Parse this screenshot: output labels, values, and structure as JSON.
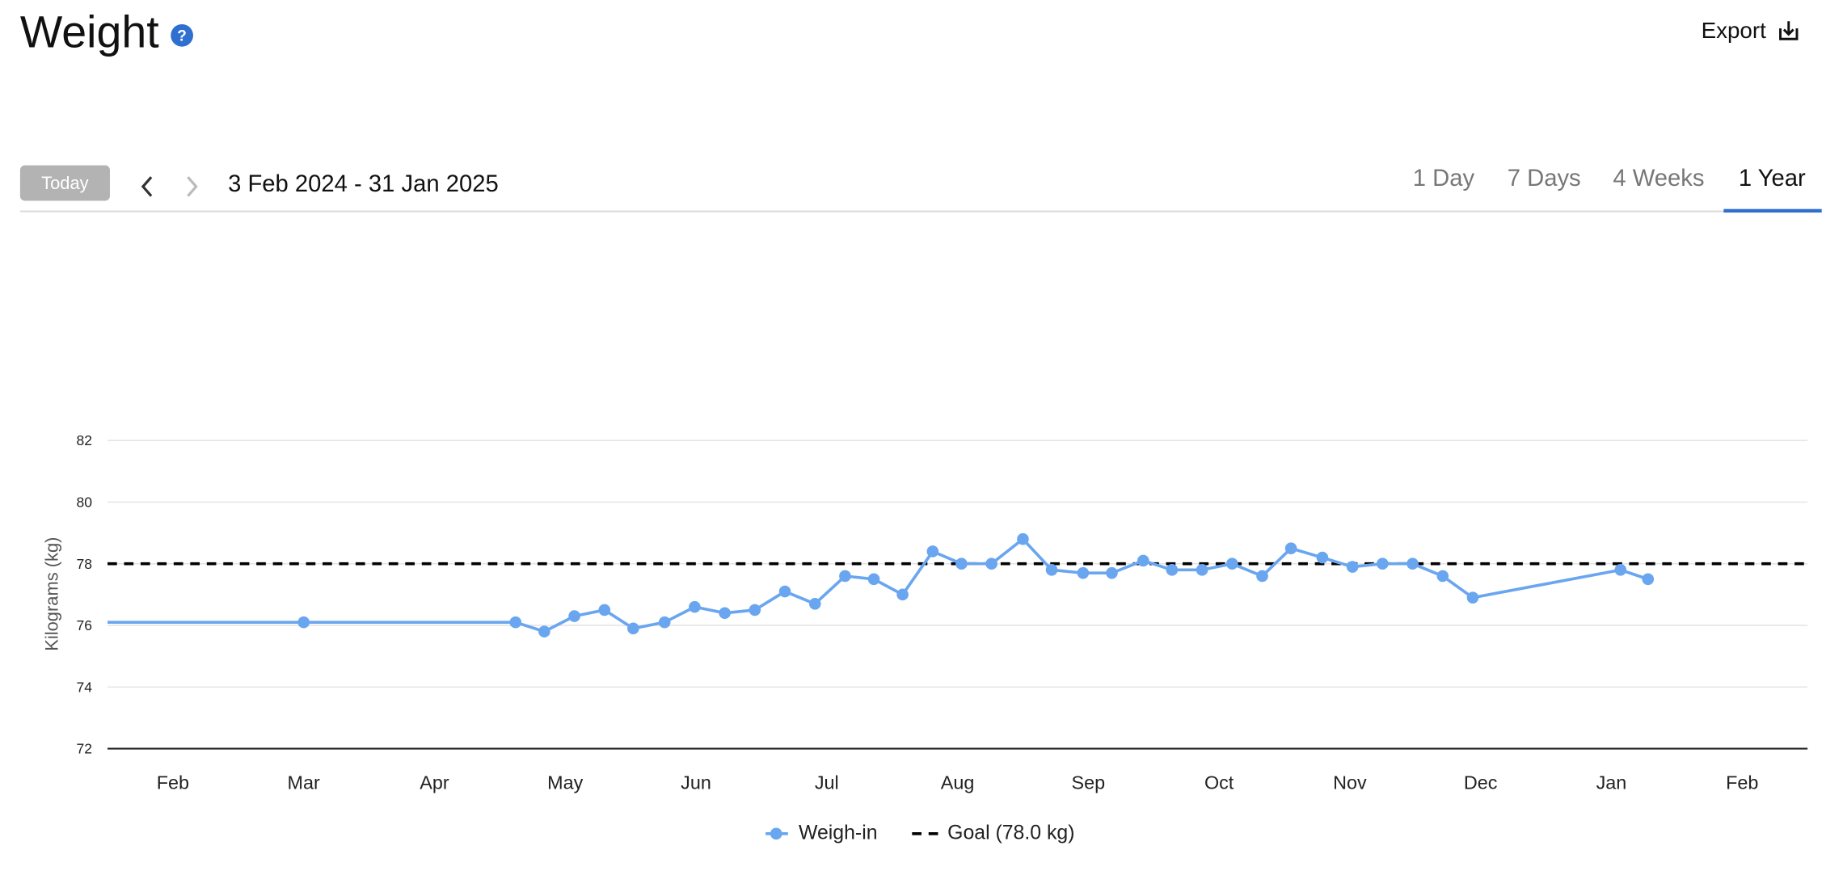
{
  "header": {
    "title": "Weight",
    "help_icon": "?",
    "export_label": "Export"
  },
  "controls": {
    "today": "Today",
    "date_range": "3 Feb 2024 - 31 Jan 2025",
    "tabs": [
      "1 Day",
      "7 Days",
      "4 Weeks",
      "1 Year"
    ],
    "selected_tab": 3
  },
  "chart_data": {
    "type": "line",
    "y_label": "Kilograms (kg)",
    "xlim": [
      -0.5,
      12.5
    ],
    "xticks": [
      {
        "value": 0,
        "label": "Feb"
      },
      {
        "value": 1,
        "label": "Mar"
      },
      {
        "value": 2,
        "label": "Apr"
      },
      {
        "value": 3,
        "label": "May"
      },
      {
        "value": 4,
        "label": "Jun"
      },
      {
        "value": 5,
        "label": "Jul"
      },
      {
        "value": 6,
        "label": "Aug"
      },
      {
        "value": 7,
        "label": "Sep"
      },
      {
        "value": 8,
        "label": "Oct"
      },
      {
        "value": 9,
        "label": "Nov"
      },
      {
        "value": 10,
        "label": "Dec"
      },
      {
        "value": 11,
        "label": "Jan"
      },
      {
        "value": 12,
        "label": "Feb"
      }
    ],
    "ylim": [
      72,
      82
    ],
    "yticks": [
      72,
      74,
      76,
      78,
      80,
      82
    ],
    "grid": true,
    "series": [
      {
        "name": "Weigh-in",
        "color": "#6aa6f0",
        "x": [
          -0.5,
          1.0,
          2.62,
          2.84,
          3.07,
          3.3,
          3.52,
          3.76,
          3.99,
          4.22,
          4.45,
          4.68,
          4.91,
          5.14,
          5.36,
          5.58,
          5.81,
          6.03,
          6.26,
          6.5,
          6.72,
          6.96,
          7.18,
          7.42,
          7.64,
          7.87,
          8.1,
          8.33,
          8.55,
          8.79,
          9.02,
          9.25,
          9.48,
          9.71,
          9.94,
          11.07,
          11.28
        ],
        "values": [
          76.1,
          76.1,
          76.1,
          75.8,
          76.3,
          76.5,
          75.9,
          76.1,
          76.6,
          76.4,
          76.5,
          77.1,
          76.7,
          77.6,
          77.5,
          77.0,
          78.4,
          78.0,
          78.0,
          78.8,
          77.8,
          77.7,
          77.7,
          78.1,
          77.8,
          77.8,
          78.0,
          77.6,
          78.5,
          78.2,
          77.9,
          78.0,
          78.0,
          77.6,
          76.9,
          77.8,
          77.5
        ]
      }
    ],
    "goal": {
      "name": "Goal (78.0 kg)",
      "value": 78,
      "color": "#000000"
    }
  }
}
